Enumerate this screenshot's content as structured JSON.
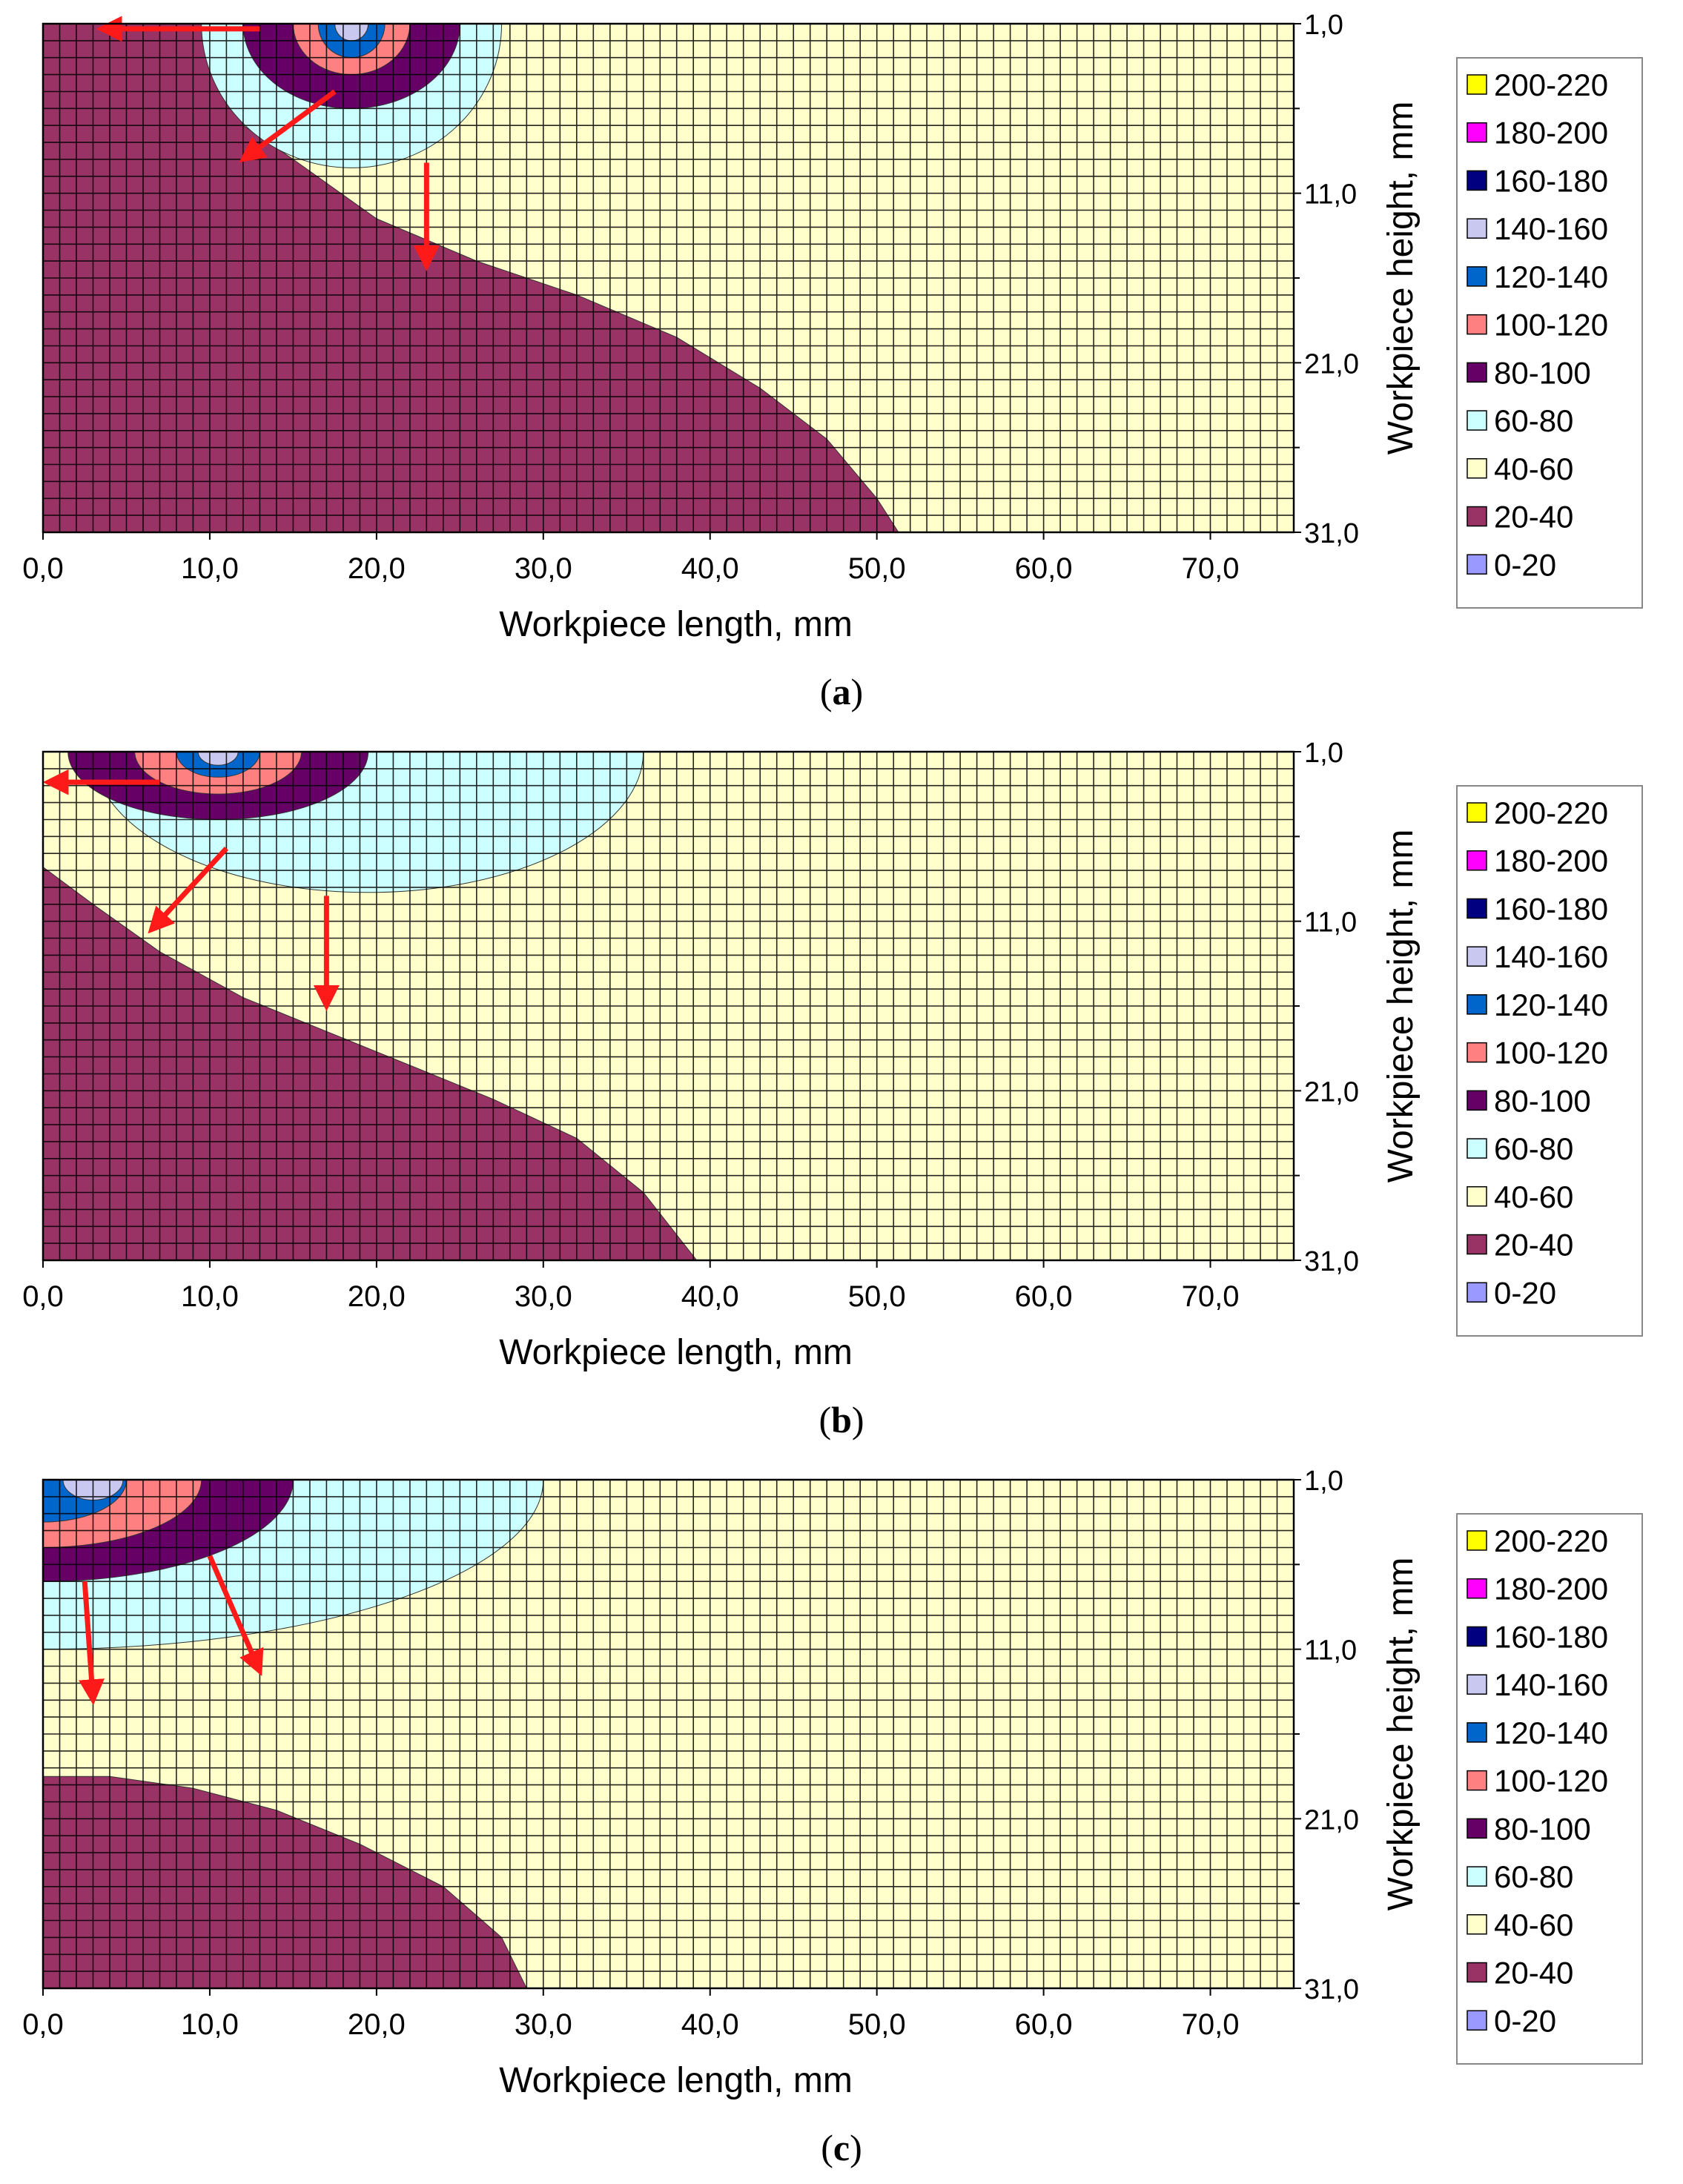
{
  "chart_data": [
    {
      "type": "heatmap",
      "panel_label": "a",
      "xlabel": "Workpiece length, mm",
      "ylabel": "Workpiece height, mm",
      "xlim": [
        0,
        75
      ],
      "ylim": [
        1,
        31
      ],
      "x_ticks": [
        "0,0",
        "10,0",
        "20,0",
        "30,0",
        "40,0",
        "50,0",
        "60,0",
        "70,0"
      ],
      "y_ticks": [
        "1,0",
        "11,0",
        "21,0",
        "31,0"
      ],
      "legend": [
        "200-220",
        "180-200",
        "160-180",
        "140-160",
        "120-140",
        "100-120",
        "80-100",
        "60-80",
        "40-60",
        "20-40",
        "0-20"
      ],
      "legend_colors": [
        "#ffff00",
        "#ff00ff",
        "#000080",
        "#c8c8f0",
        "#0066cc",
        "#ff8080",
        "#660066",
        "#ccffff",
        "#ffffcc",
        "#993366",
        "#9999ff"
      ],
      "background_band": "40-60",
      "source_x": 18.5,
      "zones": [
        {
          "band": "20-40",
          "boundary": [
            [
              0,
              1
            ],
            [
              9.5,
              1
            ],
            [
              10.5,
              4
            ],
            [
              12,
              7
            ],
            [
              15,
              9
            ],
            [
              20,
              12.5
            ],
            [
              26,
              15
            ],
            [
              32,
              17
            ],
            [
              38,
              19.5
            ],
            [
              43,
              22.5
            ],
            [
              47,
              25.5
            ],
            [
              50,
              29
            ],
            [
              51.3,
              31
            ],
            [
              0,
              31
            ]
          ]
        },
        {
          "band": "60-80",
          "arc": [
            18.5,
            1,
            9,
            8.5
          ]
        },
        {
          "band": "80-100",
          "arc": [
            18.5,
            1,
            6.5,
            5
          ]
        },
        {
          "band": "100-120",
          "arc": [
            18.5,
            1,
            3.5,
            3
          ]
        },
        {
          "band": "120-140",
          "arc": [
            18.5,
            1,
            2,
            2
          ]
        },
        {
          "band": "140-160",
          "arc": [
            18.5,
            1,
            1,
            1
          ]
        }
      ],
      "arrows": [
        [
          [
            13,
            1.3
          ],
          [
            3.5,
            1.3
          ]
        ],
        [
          [
            17.5,
            5
          ],
          [
            12,
            9
          ]
        ],
        [
          [
            23,
            9.2
          ],
          [
            23,
            15.3
          ]
        ]
      ]
    },
    {
      "type": "heatmap",
      "panel_label": "b",
      "xlabel": "Workpiece length, mm",
      "ylabel": "Workpiece height, mm",
      "xlim": [
        0,
        75
      ],
      "ylim": [
        1,
        31
      ],
      "x_ticks": [
        "0,0",
        "10,0",
        "20,0",
        "30,0",
        "40,0",
        "50,0",
        "60,0",
        "70,0"
      ],
      "y_ticks": [
        "1,0",
        "11,0",
        "21,0",
        "31,0"
      ],
      "legend": [
        "200-220",
        "180-200",
        "160-180",
        "140-160",
        "120-140",
        "100-120",
        "80-100",
        "60-80",
        "40-60",
        "20-40",
        "0-20"
      ],
      "legend_colors": [
        "#ffff00",
        "#ff00ff",
        "#000080",
        "#c8c8f0",
        "#0066cc",
        "#ff8080",
        "#660066",
        "#ccffff",
        "#ffffcc",
        "#993366",
        "#9999ff"
      ],
      "background_band": "40-60",
      "source_x": 10.5,
      "zones": [
        {
          "band": "20-40",
          "boundary": [
            [
              0,
              7.8
            ],
            [
              3,
              10
            ],
            [
              7,
              12.8
            ],
            [
              12,
              15.5
            ],
            [
              17,
              17.5
            ],
            [
              22,
              19.5
            ],
            [
              27,
              21.5
            ],
            [
              32,
              23.8
            ],
            [
              36,
              27
            ],
            [
              39.2,
              31
            ],
            [
              0,
              31
            ]
          ]
        },
        {
          "band": "60-80",
          "arc": [
            19.5,
            1,
            16.5,
            8.3
          ]
        },
        {
          "band": "80-100",
          "arc": [
            10.5,
            1,
            9,
            4
          ]
        },
        {
          "band": "100-120",
          "arc": [
            10.5,
            1,
            5,
            2.5
          ]
        },
        {
          "band": "120-140",
          "arc": [
            10.5,
            1,
            2.5,
            1.5
          ]
        },
        {
          "band": "140-160",
          "arc": [
            10.5,
            1,
            1.2,
            0.8
          ]
        }
      ],
      "arrows": [
        [
          [
            7,
            2.8
          ],
          [
            0.3,
            2.8
          ]
        ],
        [
          [
            11,
            6.7
          ],
          [
            6.5,
            11.5
          ]
        ],
        [
          [
            17,
            9.5
          ],
          [
            17,
            16
          ]
        ]
      ]
    },
    {
      "type": "heatmap",
      "panel_label": "c",
      "xlabel": "Workpiece length, mm",
      "ylabel": "Workpiece height, mm",
      "xlim": [
        0,
        75
      ],
      "ylim": [
        1,
        31
      ],
      "x_ticks": [
        "0,0",
        "10,0",
        "20,0",
        "30,0",
        "40,0",
        "50,0",
        "60,0",
        "70,0"
      ],
      "y_ticks": [
        "1,0",
        "11,0",
        "21,0",
        "31,0"
      ],
      "legend": [
        "200-220",
        "180-200",
        "160-180",
        "140-160",
        "120-140",
        "100-120",
        "80-100",
        "60-80",
        "40-60",
        "20-40",
        "0-20"
      ],
      "legend_colors": [
        "#ffff00",
        "#ff00ff",
        "#000080",
        "#c8c8f0",
        "#0066cc",
        "#ff8080",
        "#660066",
        "#ccffff",
        "#ffffcc",
        "#993366",
        "#9999ff"
      ],
      "background_band": "40-60",
      "source_x": 3,
      "zones": [
        {
          "band": "20-40",
          "boundary": [
            [
              0,
              18.5
            ],
            [
              4,
              18.5
            ],
            [
              9,
              19.2
            ],
            [
              14,
              20.5
            ],
            [
              19,
              22.5
            ],
            [
              24,
              25
            ],
            [
              27.5,
              28
            ],
            [
              29,
              31
            ],
            [
              0,
              31
            ]
          ]
        },
        {
          "band": "60-80",
          "arc": [
            0,
            1,
            30,
            10
          ]
        },
        {
          "band": "80-100",
          "arc": [
            0,
            1,
            15,
            6
          ]
        },
        {
          "band": "100-120",
          "arc": [
            0,
            1,
            9.5,
            4
          ]
        },
        {
          "band": "120-140",
          "arc": [
            0,
            1,
            5,
            2.5
          ]
        },
        {
          "band": "140-160",
          "arc": [
            3,
            1,
            1.8,
            1.2
          ]
        }
      ],
      "arrows": [
        [
          [
            2.5,
            7
          ],
          [
            3,
            14
          ]
        ],
        [
          [
            10,
            5.5
          ],
          [
            13,
            12.3
          ]
        ]
      ]
    }
  ]
}
